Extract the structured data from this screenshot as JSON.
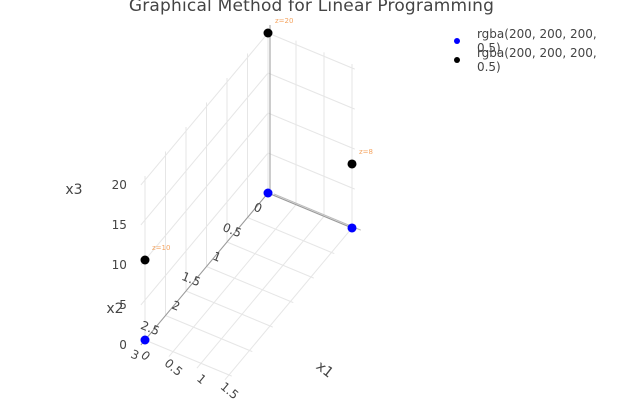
{
  "chart_data": {
    "type": "scatter",
    "title": "Graphical Method for Linear Programming",
    "scene": {
      "x_axis": {
        "title": "x1",
        "tick_labels": [
          "0",
          "0.5",
          "1",
          "1.5"
        ]
      },
      "y_axis": {
        "title": "x2",
        "tick_labels": [
          "0",
          "0.5",
          "1",
          "1.5",
          "2",
          "2.5",
          "3"
        ]
      },
      "z_axis": {
        "title": "x3",
        "tick_labels": [
          "0",
          "5",
          "10",
          "15",
          "20"
        ]
      }
    },
    "series": [
      {
        "name": "rgba(200, 200, 200, 0.5)",
        "color": "#0000ff",
        "points": [
          {
            "x": 0,
            "y": 0,
            "z": 0
          },
          {
            "x": 0,
            "y": 3,
            "z": 0
          },
          {
            "x": 1.5,
            "y": 0,
            "z": 0
          }
        ]
      },
      {
        "name": "rgba(200, 200, 200, 0.5)",
        "color": "#000000",
        "points": [
          {
            "x": 0,
            "y": 0,
            "z": 20,
            "label": "z=20"
          },
          {
            "x": 0,
            "y": 3,
            "z": 10,
            "label": "z=10"
          },
          {
            "x": 1.5,
            "y": 0,
            "z": 8,
            "label": "z=8"
          }
        ]
      }
    ],
    "annotation_color": "#f4a460",
    "legend_position": "top-right"
  }
}
